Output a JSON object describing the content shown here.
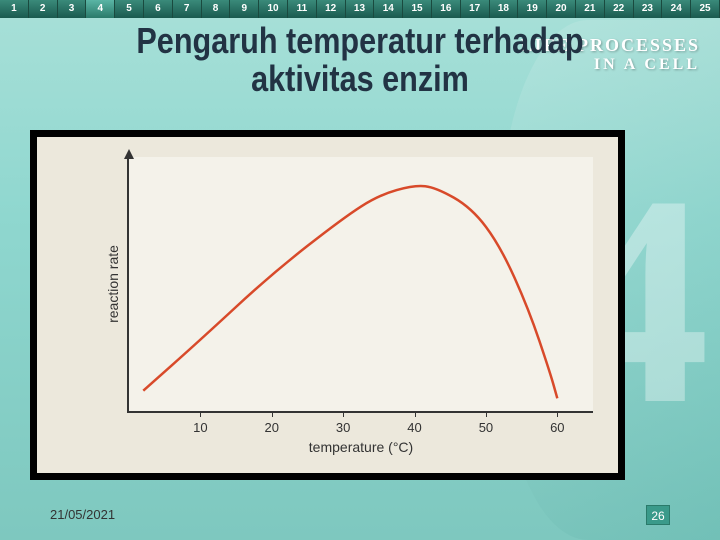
{
  "ruler": {
    "items": [
      "1",
      "2",
      "3",
      "4",
      "5",
      "6",
      "7",
      "8",
      "9",
      "10",
      "11",
      "12",
      "13",
      "14",
      "15",
      "16",
      "17",
      "18",
      "19",
      "20",
      "21",
      "22",
      "23",
      "24",
      "25"
    ],
    "active_index": 3
  },
  "decoration": {
    "line1": "LIFE PROCESSES",
    "line2": "IN A CELL",
    "big_number": "4"
  },
  "title": "Pengaruh temperatur terhadap aktivitas enzim",
  "chart": {
    "type": "line",
    "background_color": "#ece8dc",
    "plot_bg": "#f4f2ea",
    "axis_color": "#333333",
    "line_color": "#d84a2a",
    "line_width": 2.5,
    "xlabel": "temperature (°C)",
    "ylabel": "reaction rate",
    "label_fontsize": 14,
    "tick_fontsize": 13,
    "xlim": [
      0,
      65
    ],
    "ylim": [
      0,
      100
    ],
    "xticks": [
      10,
      20,
      30,
      40,
      50,
      60
    ],
    "curve_points": [
      [
        2,
        8
      ],
      [
        10,
        28
      ],
      [
        20,
        54
      ],
      [
        30,
        76
      ],
      [
        35,
        85
      ],
      [
        40,
        89
      ],
      [
        43,
        88
      ],
      [
        48,
        80
      ],
      [
        52,
        65
      ],
      [
        56,
        40
      ],
      [
        59,
        15
      ],
      [
        60,
        5
      ]
    ]
  },
  "footer": {
    "date": "21/05/2021",
    "page": "26"
  },
  "colors": {
    "slide_bg": "#8fd7cf",
    "title_color": "#223344",
    "accent": "#3a9a8a"
  }
}
